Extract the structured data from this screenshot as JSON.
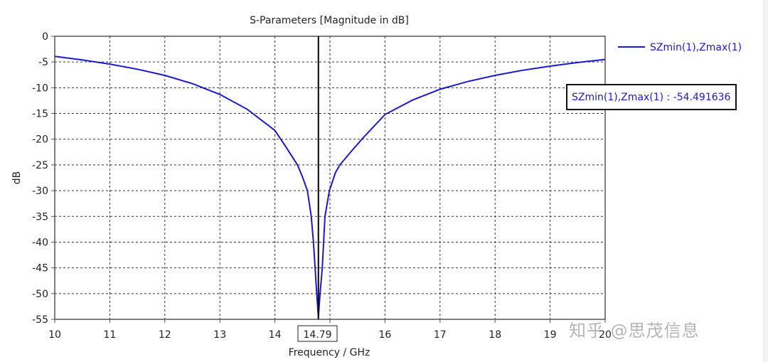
{
  "chart_data": {
    "type": "line",
    "title": "S-Parameters [Magnitude in dB]",
    "xlabel": "Frequency / GHz",
    "ylabel": "dB",
    "xlim": [
      10,
      20
    ],
    "ylim": [
      -55,
      0
    ],
    "xticks": [
      10,
      11,
      12,
      13,
      14,
      15,
      16,
      17,
      18,
      19,
      20
    ],
    "yticks": [
      0,
      -5,
      -10,
      -15,
      -20,
      -25,
      -30,
      -35,
      -40,
      -45,
      -50,
      -55
    ],
    "grid": true,
    "grid_style": "dashed",
    "legend_position": "right-top",
    "series": [
      {
        "name": "SZmin(1),Zmax(1)",
        "color": "#1a1acc",
        "x": [
          10,
          10.5,
          11,
          11.5,
          12,
          12.5,
          13,
          13.5,
          14,
          14.2,
          14.41,
          14.5,
          14.59,
          14.66,
          14.7,
          14.73,
          14.76,
          14.79,
          14.82,
          14.86,
          14.91,
          14.99,
          15.1,
          15.18,
          15.4,
          15.58,
          16,
          16.5,
          17,
          17.5,
          18,
          18.5,
          19,
          19.5,
          20
        ],
        "y": [
          -3.9,
          -4.6,
          -5.4,
          -6.4,
          -7.6,
          -9.2,
          -11.3,
          -14.2,
          -18.3,
          -21.5,
          -25,
          -27.3,
          -30,
          -35,
          -40,
          -45,
          -50,
          -54.5,
          -50,
          -45,
          -35,
          -30,
          -26.5,
          -25,
          -22.2,
          -20,
          -15.2,
          -12.4,
          -10.3,
          -8.8,
          -7.6,
          -6.6,
          -5.8,
          -5.1,
          -4.5
        ]
      }
    ],
    "marker": {
      "x": 14.79,
      "x_label": "14.79",
      "readout": "SZmin(1),Zmax(1) : -54.491636",
      "value": -54.491636
    }
  },
  "chart": {
    "title": "S-Parameters [Magnitude in dB]",
    "xlabel": "Frequency / GHz",
    "ylabel": "dB",
    "legend_label": "SZmin(1),Zmax(1)",
    "marker_readout": "SZmin(1),Zmax(1) : -54.491636",
    "marker_x_label": "14.79"
  },
  "watermark": "知乎 @思茂信息",
  "colors": {
    "series": "#1a1acc",
    "axis": "#555555",
    "grid": "#333333",
    "marker_line": "#000000"
  }
}
